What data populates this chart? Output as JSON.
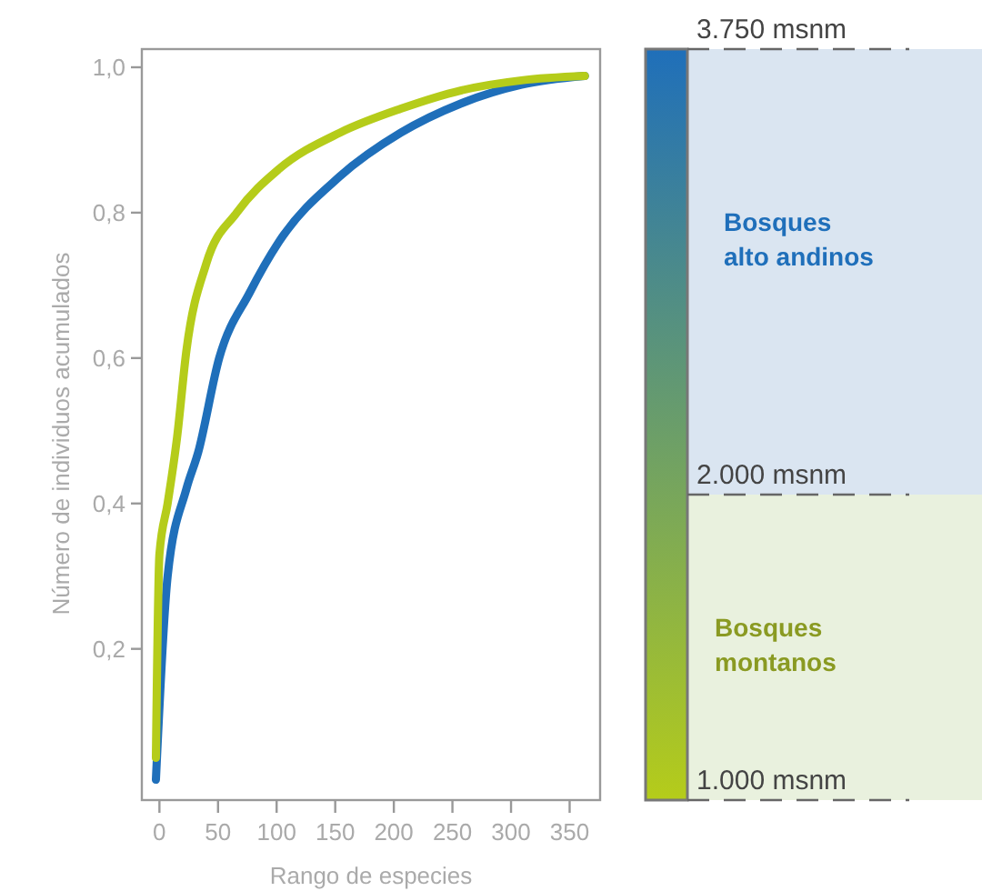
{
  "chart_data": {
    "type": "line",
    "xlabel": "Rango de especies",
    "ylabel": "Número de individuos acumulados",
    "xlim": [
      -15,
      376
    ],
    "ylim": [
      -0.008,
      1.025
    ],
    "xticks": [
      0,
      50,
      100,
      150,
      200,
      250,
      300,
      350
    ],
    "yticks": [
      {
        "value": 0.2,
        "label": "0,2"
      },
      {
        "value": 0.4,
        "label": "0,4"
      },
      {
        "value": 0.6,
        "label": "0,6"
      },
      {
        "value": 0.8,
        "label": "0,8"
      },
      {
        "value": 1,
        "label": "1,0"
      }
    ],
    "grid": false,
    "legend": "right",
    "marker": "none",
    "line_style": "solid",
    "series": [
      {
        "name": "Bosques alto andinos",
        "color": "#1f6fba",
        "x": [
          -3,
          7,
          23,
          33,
          51,
          77,
          102,
          154,
          206,
          257,
          309,
          363
        ],
        "values": [
          0.02,
          0.3,
          0.42,
          0.47,
          0.6,
          0.69,
          0.76,
          0.85,
          0.91,
          0.95,
          0.976,
          0.988
        ]
      },
      {
        "name": "Bosques montanos",
        "color": "#b5cc1a",
        "x": [
          -3,
          0,
          7,
          15,
          23,
          40,
          66,
          102,
          154,
          206,
          257,
          309,
          363
        ],
        "values": [
          0.05,
          0.33,
          0.4,
          0.49,
          0.61,
          0.73,
          0.8,
          0.86,
          0.91,
          0.943,
          0.968,
          0.982,
          0.988
        ]
      }
    ],
    "annotations": [
      "3.750 msnm",
      "2.000 msnm",
      "1.000 msnm"
    ]
  }
}
